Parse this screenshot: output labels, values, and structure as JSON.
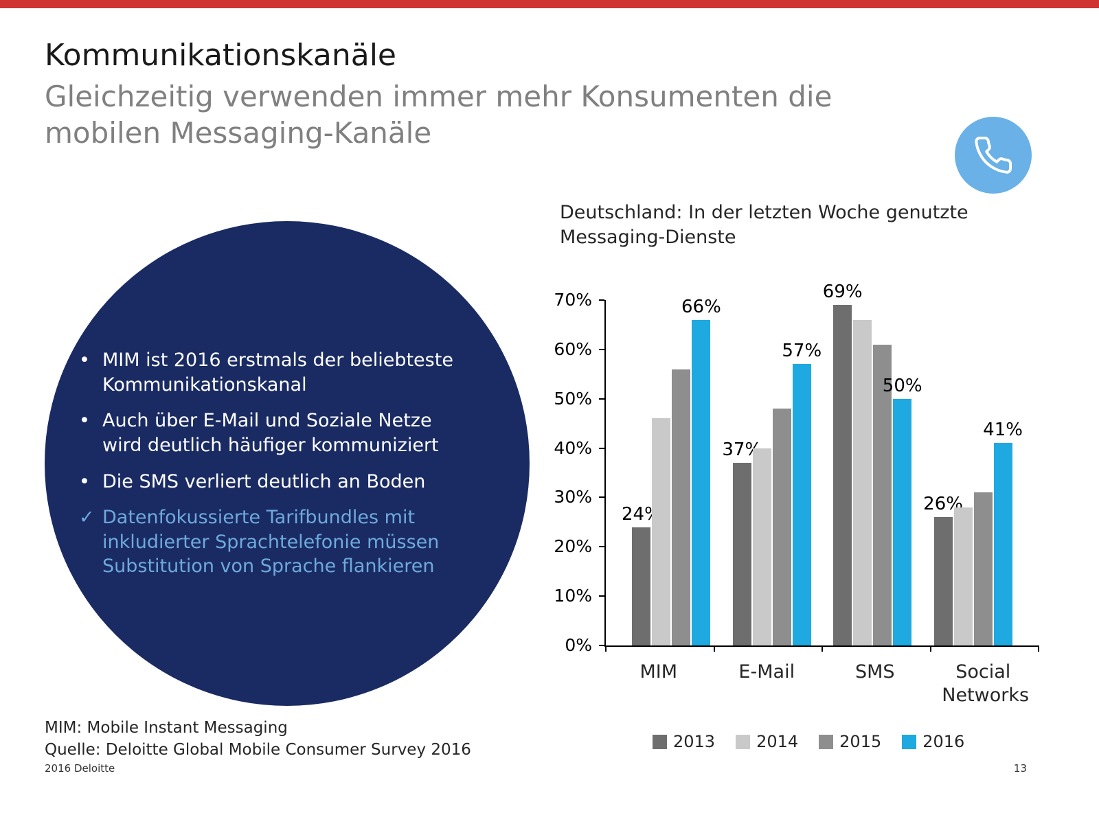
{
  "slide": {
    "title": "Kommunikationskanäle",
    "subtitle": "Gleichzeitig verwenden immer mehr Konsumenten die mobilen Messaging-Kanäle",
    "footnote_line1": "MIM: Mobile Instant Messaging",
    "footnote_line2": "Quelle: Deloitte Global Mobile Consumer Survey 2016",
    "footer_left": "2016 Deloitte",
    "page_number": "13"
  },
  "insight_bullets": [
    {
      "marker": "•",
      "style": "white",
      "text": "MIM ist 2016 erstmals der beliebteste Kommunikationskanal"
    },
    {
      "marker": "•",
      "style": "white",
      "text": "Auch über E-Mail und Soziale Netze wird deutlich häufiger kommuniziert"
    },
    {
      "marker": "•",
      "style": "white",
      "text": "Die SMS verliert deutlich an Boden"
    },
    {
      "marker": "✓",
      "style": "lightblue",
      "text": "Datenfokussierte Tarifbundles mit inkludierter Sprachtelefonie müssen Substitution von Sprache flankieren"
    }
  ],
  "icons": {
    "phone": "phone-icon"
  },
  "colors": {
    "accent_red": "#D03330",
    "navy_circle": "#1A2B63",
    "lightblue_text": "#6FA9DC",
    "phone_badge_blue": "#69B1E6"
  },
  "chart_data": {
    "type": "bar",
    "title": "Deutschland: In der letzten Woche genutzte Messaging-Dienste",
    "categories": [
      "MIM",
      "E-Mail",
      "SMS",
      "Social Networks"
    ],
    "series": [
      {
        "name": "2013",
        "color": "#6E6E6E",
        "values": [
          24,
          37,
          69,
          26
        ],
        "show_labels": true
      },
      {
        "name": "2014",
        "color": "#C9C9C9",
        "values": [
          46,
          40,
          66,
          28
        ],
        "show_labels": false
      },
      {
        "name": "2015",
        "color": "#8E8E8E",
        "values": [
          56,
          48,
          61,
          31
        ],
        "show_labels": false
      },
      {
        "name": "2016",
        "color": "#1EA9E0",
        "values": [
          66,
          57,
          50,
          41
        ],
        "show_labels": true
      }
    ],
    "ylim": [
      0,
      70
    ],
    "ytick_step": 10,
    "ytick_labels": [
      "0%",
      "10%",
      "20%",
      "30%",
      "40%",
      "50%",
      "60%",
      "70%"
    ],
    "value_suffix": "%",
    "grid": false,
    "legend_position": "bottom"
  }
}
